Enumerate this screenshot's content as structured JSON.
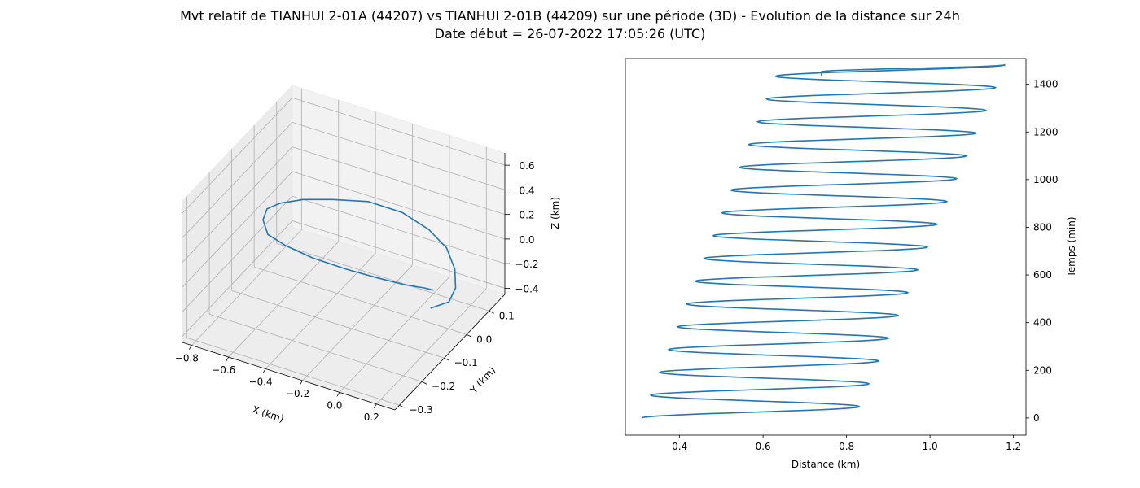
{
  "title_line1": "Mvt relatif de TIANHUI 2-01A (44207) vs TIANHUI 2-01B (44209) sur une période (3D) - Evolution de la distance sur 24h",
  "title_line2": "Date début = 26-07-2022 17:05:26 (UTC)",
  "colors": {
    "series": "#1f77b4",
    "grid": "#b0b0b0",
    "pane": "#f2f2f2"
  },
  "chart_data": [
    {
      "type": "line3d",
      "xlabel": "X (km)",
      "ylabel": "Y (km)",
      "zlabel": "Z (km)",
      "xticks": [
        "−0.8",
        "−0.6",
        "−0.4",
        "−0.2",
        "0.0",
        "0.2"
      ],
      "yticks": [
        "−0.3",
        "−0.2",
        "−0.1",
        "0.0",
        "0.1"
      ],
      "zticks": [
        "−0.4",
        "−0.2",
        "0.0",
        "0.2",
        "0.4",
        "0.6"
      ],
      "xlim": [
        -0.85,
        0.3
      ],
      "ylim": [
        -0.32,
        0.17
      ],
      "zlim": [
        -0.45,
        0.7
      ],
      "grid": true,
      "points": [
        [
          0.08,
          0.02,
          -0.38
        ],
        [
          0.18,
          0.02,
          -0.28
        ],
        [
          0.24,
          0.0,
          -0.1
        ],
        [
          0.26,
          -0.02,
          0.1
        ],
        [
          0.24,
          -0.04,
          0.3
        ],
        [
          0.18,
          -0.07,
          0.48
        ],
        [
          0.06,
          -0.09,
          0.6
        ],
        [
          -0.1,
          -0.11,
          0.65
        ],
        [
          -0.28,
          -0.12,
          0.6
        ],
        [
          -0.45,
          -0.11,
          0.5
        ],
        [
          -0.6,
          -0.09,
          0.36
        ],
        [
          -0.72,
          -0.05,
          0.18
        ],
        [
          -0.79,
          -0.01,
          -0.02
        ],
        [
          -0.8,
          0.02,
          -0.2
        ],
        [
          -0.74,
          0.05,
          -0.32
        ],
        [
          -0.62,
          0.07,
          -0.4
        ],
        [
          -0.45,
          0.08,
          -0.43
        ],
        [
          -0.28,
          0.08,
          -0.42
        ],
        [
          -0.12,
          0.07,
          -0.38
        ],
        [
          0.0,
          0.06,
          -0.33
        ],
        [
          0.06,
          0.05,
          -0.3
        ]
      ]
    },
    {
      "type": "line",
      "xlabel": "Distance (km)",
      "ylabel": "Temps (min)",
      "xlim": [
        0.27,
        1.23
      ],
      "ylim": [
        -72,
        1508
      ],
      "xticks": [
        "0.4",
        "0.6",
        "0.8",
        "1.0",
        "1.2"
      ],
      "yticks": [
        "0",
        "200",
        "400",
        "600",
        "800",
        "1000",
        "1200",
        "1400"
      ],
      "yaxis_side": "right",
      "grid": false,
      "cycles": {
        "period_min": 95.6,
        "peak_offset_min": 47.8,
        "mins_start": 0.31,
        "mins_end": 0.63,
        "maxs_start": 0.83,
        "maxs_end": 1.18
      },
      "t_end_min": 1435,
      "end_distance": 0.74
    }
  ]
}
